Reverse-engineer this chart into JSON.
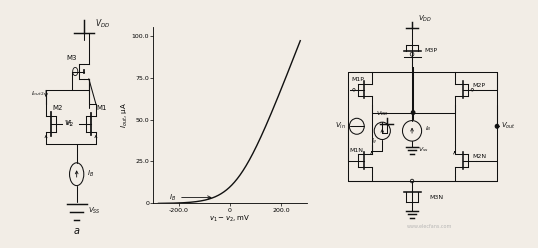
{
  "bg_color": "#f2ede6",
  "fig_width": 5.38,
  "fig_height": 2.48,
  "dpi": 100,
  "graph_xlim": [
    -300,
    300
  ],
  "graph_ylim": [
    0,
    105
  ],
  "graph_xticks": [
    -200,
    0,
    200
  ],
  "graph_ytick_vals": [
    0,
    25.0,
    50.0,
    75.0,
    100.0
  ],
  "graph_ytick_labels": [
    "0",
    "25.0",
    "50.0",
    "75.0",
    "100.0"
  ],
  "graph_xlabel": "v₁-v₂, mV",
  "graph_ylabel": "I₀ᵤₜ, μA",
  "line_color": "#111111",
  "watermark": "www.elecfans.com"
}
